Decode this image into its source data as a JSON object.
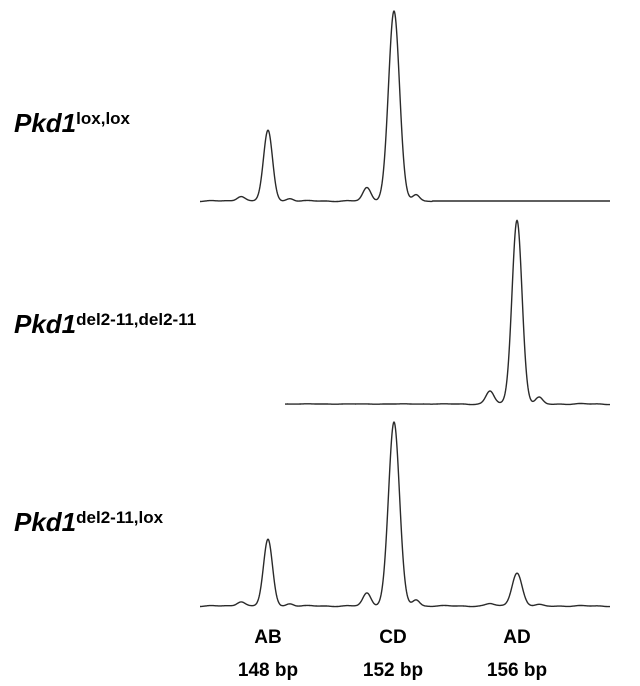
{
  "chart_data": {
    "type": "line",
    "xlabel": "",
    "ylabel": "",
    "grid": false,
    "peaks": [
      {
        "name": "AB",
        "size": "148 bp"
      },
      {
        "name": "CD",
        "size": "152 bp"
      },
      {
        "name": "AD",
        "size": "156 bp"
      }
    ],
    "series": [
      {
        "gene": "Pkd1",
        "genotype": "lox,lox",
        "peak_heights": {
          "AB": 0.37,
          "CD": 1.0,
          "AD": 0.0
        }
      },
      {
        "gene": "Pkd1",
        "genotype": "del2-11,del2-11",
        "peak_heights": {
          "AB": 0.0,
          "CD": 0.0,
          "AD": 1.0
        }
      },
      {
        "gene": "Pkd1",
        "genotype": "del2-11,lox",
        "peak_heights": {
          "AB": 0.36,
          "CD": 1.0,
          "AD": 0.18
        }
      }
    ]
  }
}
